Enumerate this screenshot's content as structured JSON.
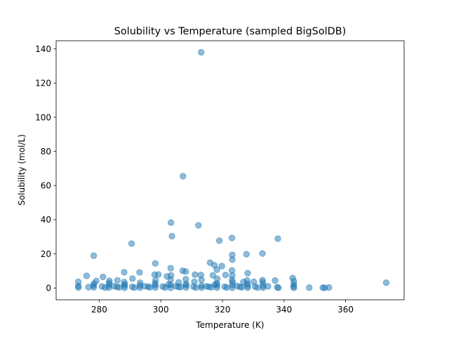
{
  "chart_data": {
    "type": "scatter",
    "title": "Solubility vs Temperature (sampled BigSolDB)",
    "xlabel": "Temperature (K)",
    "ylabel": "Solubility (mol/L)",
    "xlim": [
      266,
      379
    ],
    "ylim": [
      -6.9,
      144.8
    ],
    "xticks": [
      280,
      300,
      320,
      340,
      360
    ],
    "yticks": [
      0,
      20,
      40,
      60,
      80,
      100,
      120,
      140
    ],
    "xtick_labels": [
      "280",
      "300",
      "320",
      "340",
      "360"
    ],
    "ytick_labels": [
      "0",
      "20",
      "40",
      "60",
      "80",
      "100",
      "120",
      "140"
    ],
    "grid": false,
    "legend": "none",
    "marker_color": "#1f77b4",
    "marker_alpha": 0.5,
    "points": [
      [
        313.1,
        138.0
      ],
      [
        307.2,
        65.5
      ],
      [
        303.3,
        38.3
      ],
      [
        312.2,
        36.7
      ],
      [
        303.6,
        30.4
      ],
      [
        323.1,
        29.3
      ],
      [
        338.0,
        28.9
      ],
      [
        319.0,
        27.7
      ],
      [
        290.5,
        26.0
      ],
      [
        333.0,
        20.2
      ],
      [
        327.8,
        19.8
      ],
      [
        323.2,
        19.4
      ],
      [
        278.2,
        18.9
      ],
      [
        323.2,
        16.6
      ],
      [
        316.0,
        14.8
      ],
      [
        298.2,
        14.4
      ],
      [
        317.4,
        13.3
      ],
      [
        319.8,
        12.8
      ],
      [
        303.2,
        11.6
      ],
      [
        318.2,
        10.7
      ],
      [
        307.1,
        10.1
      ],
      [
        323.1,
        10.3
      ],
      [
        308.1,
        9.6
      ],
      [
        288.1,
        9.2
      ],
      [
        293.1,
        9.1
      ],
      [
        328.2,
        8.7
      ],
      [
        298.0,
        7.8
      ],
      [
        299.2,
        7.9
      ],
      [
        311.1,
        7.8
      ],
      [
        313.0,
        7.6
      ],
      [
        275.9,
        7.1
      ],
      [
        303.3,
        7.4
      ],
      [
        316.9,
        7.4
      ],
      [
        321.0,
        7.6
      ],
      [
        323.2,
        7.3
      ],
      [
        302.0,
        6.8
      ],
      [
        281.2,
        6.5
      ],
      [
        342.8,
        5.8
      ],
      [
        290.8,
        5.5
      ],
      [
        318.3,
        5.4
      ],
      [
        308.1,
        5.2
      ],
      [
        333.0,
        4.6
      ],
      [
        337.1,
        4.4
      ],
      [
        343.2,
        4.0
      ],
      [
        273.2,
        3.6
      ],
      [
        279.0,
        4.1
      ],
      [
        285.9,
        4.5
      ],
      [
        283.3,
        4.2
      ],
      [
        298.3,
        4.6
      ],
      [
        303.2,
        4.9
      ],
      [
        313.2,
        4.8
      ],
      [
        323.1,
        4.7
      ],
      [
        328.0,
        4.4
      ],
      [
        326.8,
        3.5
      ],
      [
        330.2,
        3.6
      ],
      [
        323.3,
        3.4
      ],
      [
        310.9,
        3.6
      ],
      [
        305.8,
        3.3
      ],
      [
        293.3,
        3.1
      ],
      [
        288.1,
        3.5
      ],
      [
        373.2,
        3.1
      ],
      [
        333.1,
        3.3
      ],
      [
        278.3,
        2.6
      ],
      [
        283.2,
        2.9
      ],
      [
        288.3,
        2.2
      ],
      [
        298.1,
        2.8
      ],
      [
        308.2,
        2.4
      ],
      [
        318.2,
        2.7
      ],
      [
        328.1,
        2.5
      ],
      [
        343.2,
        2.1
      ],
      [
        273.2,
        1.2
      ],
      [
        273.2,
        0.3
      ],
      [
        278.1,
        1.5
      ],
      [
        278.2,
        0.4
      ],
      [
        280.9,
        0.9
      ],
      [
        283.2,
        1.6
      ],
      [
        283.1,
        0.2
      ],
      [
        285.8,
        0.6
      ],
      [
        288.2,
        1.3
      ],
      [
        288.2,
        0.1
      ],
      [
        290.7,
        0.7
      ],
      [
        293.2,
        1.5
      ],
      [
        293.2,
        0.2
      ],
      [
        295.9,
        0.8
      ],
      [
        298.2,
        1.7
      ],
      [
        298.2,
        0.3
      ],
      [
        300.6,
        0.9
      ],
      [
        303.2,
        1.8
      ],
      [
        303.2,
        0.1
      ],
      [
        305.7,
        0.7
      ],
      [
        308.2,
        1.6
      ],
      [
        308.2,
        0.3
      ],
      [
        310.6,
        0.8
      ],
      [
        313.2,
        1.4
      ],
      [
        313.2,
        0.2
      ],
      [
        315.6,
        0.7
      ],
      [
        318.2,
        1.6
      ],
      [
        318.2,
        0.2
      ],
      [
        320.7,
        0.8
      ],
      [
        323.2,
        1.7
      ],
      [
        323.2,
        0.1
      ],
      [
        325.7,
        0.6
      ],
      [
        328.2,
        1.3
      ],
      [
        328.2,
        0.2
      ],
      [
        330.6,
        0.8
      ],
      [
        333.2,
        1.4
      ],
      [
        333.2,
        0.2
      ],
      [
        337.8,
        0.5
      ],
      [
        338.2,
        0.1
      ],
      [
        343.1,
        0.9
      ],
      [
        343.2,
        0.1
      ],
      [
        348.2,
        0.2
      ],
      [
        352.6,
        0.2
      ],
      [
        353.2,
        0.1
      ],
      [
        354.6,
        0.3
      ],
      [
        276.5,
        0.5
      ],
      [
        281.9,
        0.3
      ],
      [
        286.5,
        0.4
      ],
      [
        291.4,
        0.2
      ],
      [
        296.4,
        0.4
      ],
      [
        301.4,
        0.3
      ],
      [
        306.4,
        0.5
      ],
      [
        311.4,
        0.2
      ],
      [
        316.4,
        0.4
      ],
      [
        321.4,
        0.3
      ],
      [
        326.4,
        0.5
      ],
      [
        331.4,
        0.2
      ],
      [
        302.5,
        2.0
      ],
      [
        317.5,
        2.0
      ],
      [
        284.8,
        1.1
      ],
      [
        294.8,
        1.0
      ],
      [
        304.8,
        1.1
      ],
      [
        314.8,
        1.0
      ],
      [
        324.8,
        1.2
      ],
      [
        334.8,
        1.0
      ]
    ]
  }
}
